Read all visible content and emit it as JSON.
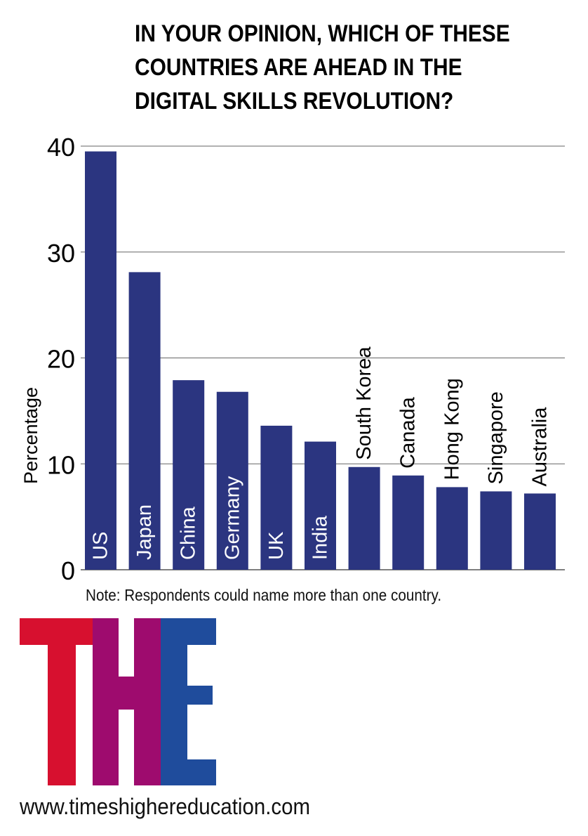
{
  "chart_data": {
    "type": "bar",
    "title": [
      "IN YOUR OPINION, WHICH OF THESE",
      "COUNTRIES ARE AHEAD IN THE",
      "DIGITAL SKILLS REVOLUTION?"
    ],
    "ylabel": "Percentage",
    "xlabel": "",
    "ylim": [
      0,
      40
    ],
    "yticks": [
      0,
      10,
      20,
      30,
      40
    ],
    "grid": true,
    "categories": [
      "US",
      "Japan",
      "China",
      "Germany",
      "UK",
      "India",
      "South Korea",
      "Canada",
      "Hong Kong",
      "Singapore",
      "Australia"
    ],
    "values": [
      39.5,
      28.1,
      17.9,
      16.8,
      13.6,
      12.1,
      9.7,
      8.9,
      7.8,
      7.4,
      7.2
    ],
    "bar_color": "#2b3580",
    "label_placement": [
      "inside",
      "inside",
      "inside",
      "inside",
      "inside",
      "inside",
      "above",
      "above",
      "above",
      "above",
      "above"
    ]
  },
  "note": "Note: Respondents could name more than one country.",
  "logo": {
    "letters": [
      "T",
      "H",
      "E"
    ],
    "colors": [
      "#d7102f",
      "#9e0b6e",
      "#1f4c9c"
    ]
  },
  "url": "www.timeshighereducation.com"
}
